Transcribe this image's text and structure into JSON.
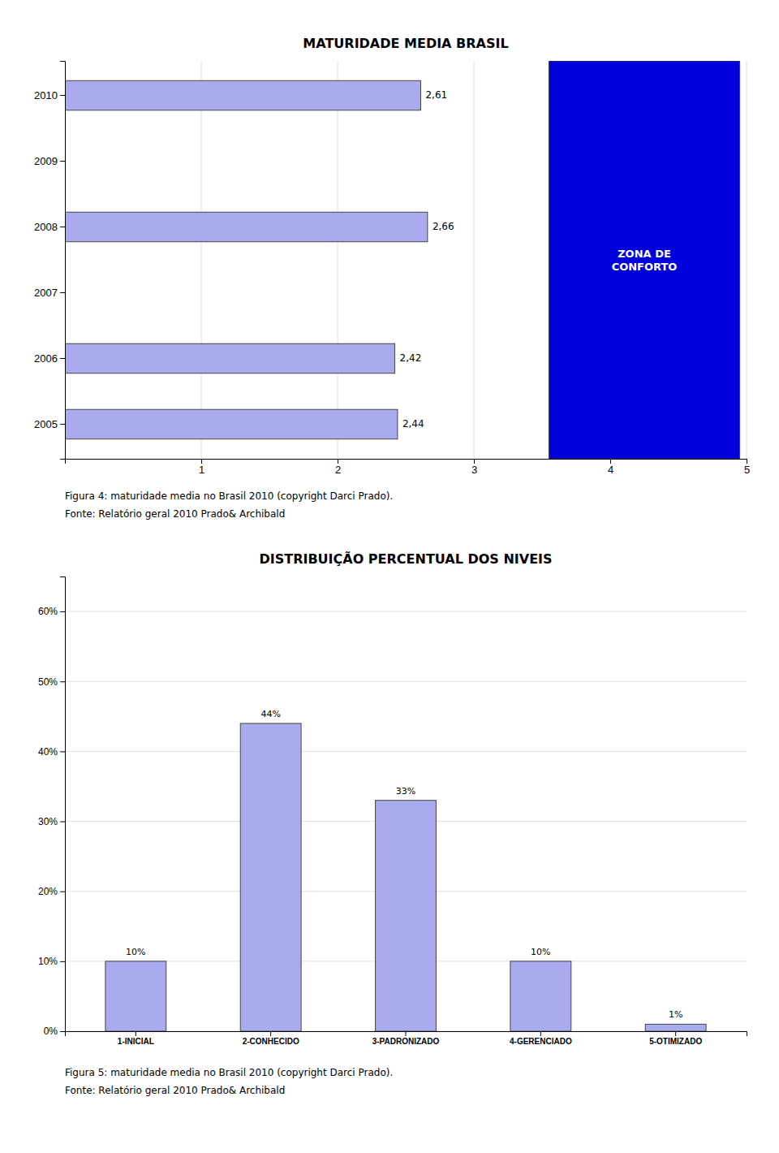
{
  "chart_data": [
    {
      "type": "bar",
      "orientation": "horizontal",
      "title": "MATURIDADE MEDIA BRASIL",
      "categories": [
        "2010",
        "2009",
        "2008",
        "2007",
        "2006",
        "2005"
      ],
      "values": [
        2.61,
        0,
        2.66,
        0,
        2.42,
        2.44
      ],
      "value_labels": [
        "2,61",
        null,
        "2,66",
        null,
        "2,42",
        "2,44"
      ],
      "data_labels": true,
      "color": "#aaaaee",
      "xlim": [
        0,
        5
      ],
      "xticks": [
        1,
        2,
        3,
        4,
        5
      ],
      "grid": true,
      "annotations": [
        {
          "text": "ZONA DE\nCONFORTO",
          "x": [
            3.55,
            4.95
          ],
          "color": "#0000dd"
        }
      ],
      "caption": "Figura 4: maturidade media no Brasil 2010 (copyright Darci Prado).",
      "source": "Fonte: Relatório geral 2010 Prado& Archibald"
    },
    {
      "type": "bar",
      "title": "DISTRIBUIÇÃO PERCENTUAL DOS NIVEIS",
      "categories": [
        "1-INICIAL",
        "2-CONHECIDO",
        "3-PADRONIZADO",
        "4-GERENCIADO",
        "5-OTIMIZADO"
      ],
      "values": [
        10,
        44,
        33,
        10,
        1
      ],
      "value_labels": [
        "10%",
        "44%",
        "33%",
        "10%",
        "1%"
      ],
      "data_labels": true,
      "color": "#aaaaee",
      "ylim": [
        0,
        65
      ],
      "yticks": [
        {
          "value": 0,
          "label": "0%"
        },
        {
          "value": 10,
          "label": "10%"
        },
        {
          "value": 20,
          "label": "20%"
        },
        {
          "value": 30,
          "label": "30%"
        },
        {
          "value": 40,
          "label": "40%"
        },
        {
          "value": 50,
          "label": "50%"
        },
        {
          "value": 60,
          "label": "60%"
        }
      ],
      "grid": true,
      "caption": "Figura 5: maturidade media no Brasil 2010 (copyright Darci Prado).",
      "source": "Fonte: Relatório geral 2010 Prado& Archibald"
    }
  ]
}
